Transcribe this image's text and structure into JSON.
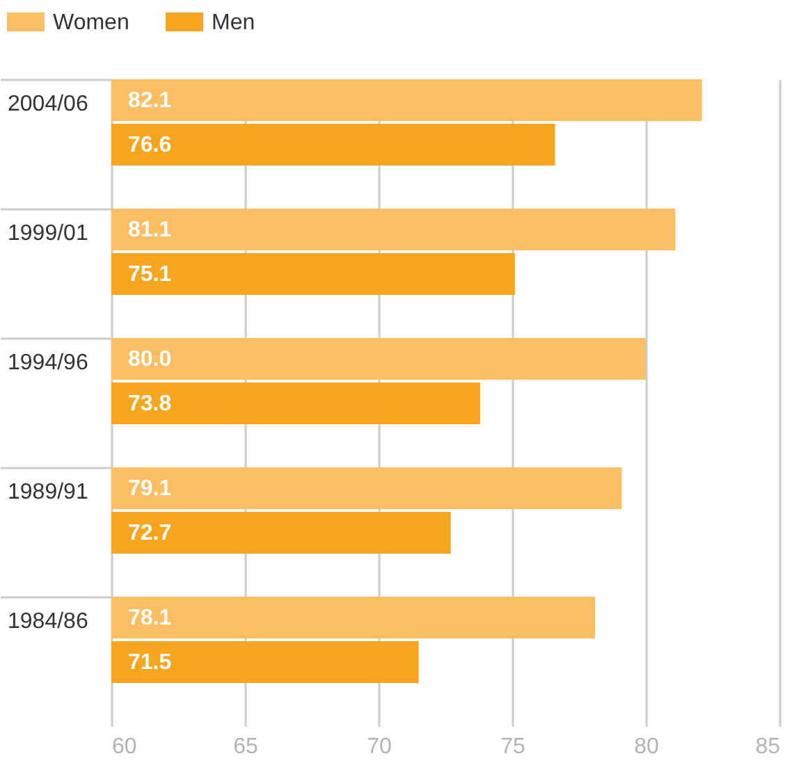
{
  "chart_data": {
    "type": "bar",
    "orientation": "horizontal",
    "categories": [
      "2004/06",
      "1999/01",
      "1994/96",
      "1989/91",
      "1984/86"
    ],
    "series": [
      {
        "name": "Women",
        "color": "#fcbd63",
        "values": [
          82.1,
          81.1,
          80.0,
          79.1,
          78.1
        ],
        "value_labels": [
          "82.1",
          "81.1",
          "80.0",
          "79.1",
          "78.1"
        ]
      },
      {
        "name": "Men",
        "color": "#f6a51f",
        "values": [
          76.6,
          75.1,
          73.8,
          72.7,
          71.5
        ],
        "value_labels": [
          "76.6",
          "75.1",
          "73.8",
          "72.7",
          "71.5"
        ]
      }
    ],
    "xlim": [
      60,
      85
    ],
    "xticks": [
      60,
      65,
      70,
      75,
      80,
      85
    ],
    "grid": "x",
    "legend": "top left"
  }
}
